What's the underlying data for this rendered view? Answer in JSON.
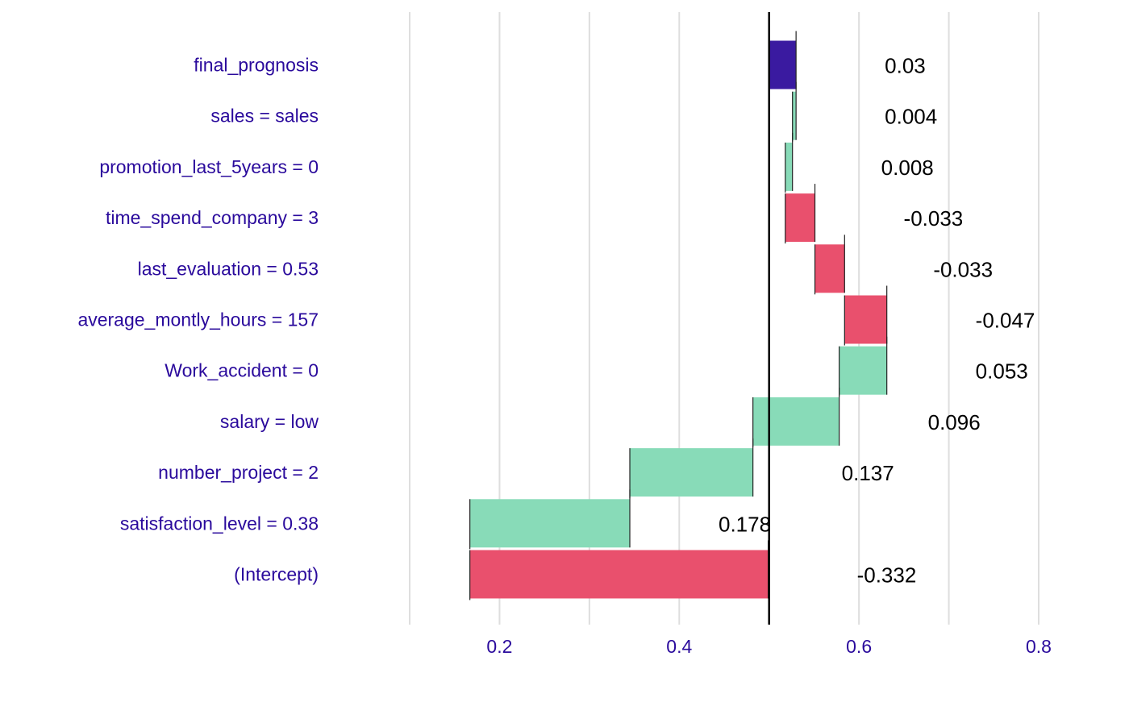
{
  "chart_data": {
    "type": "bar",
    "subtype": "waterfall-break-down",
    "title": "",
    "xlabel": "",
    "ylabel": "",
    "xlim": [
      0.1,
      0.8
    ],
    "x_ticks": [
      0.2,
      0.4,
      0.6,
      0.8
    ],
    "x_tick_labels": [
      "0.2",
      "0.4",
      "0.6",
      "0.8"
    ],
    "baseline": 0.5,
    "grid": true,
    "colors": {
      "positive": "#86dab7",
      "negative": "#e94d6a",
      "prediction": "#3a1aa0",
      "labels": "#2a0a9c",
      "baseline": "#000000"
    },
    "categories": [
      "final_prognosis",
      "sales = sales",
      "promotion_last_5years = 0",
      "time_spend_company = 3",
      "last_evaluation = 0.53",
      "average_montly_hours = 157",
      "Work_accident = 0",
      "salary = low",
      "number_project = 2",
      "satisfaction_level = 0.38",
      "(Intercept)"
    ],
    "bars": [
      {
        "label": "final_prognosis",
        "start": 0.5,
        "end": 0.53,
        "value": "0.03",
        "kind": "prediction"
      },
      {
        "label": "sales = sales",
        "start": 0.526,
        "end": 0.53,
        "value": "0.004",
        "kind": "positive"
      },
      {
        "label": "promotion_last_5years = 0",
        "start": 0.518,
        "end": 0.526,
        "value": "0.008",
        "kind": "positive"
      },
      {
        "label": "time_spend_company = 3",
        "start": 0.518,
        "end": 0.551,
        "value": "-0.033",
        "kind": "negative"
      },
      {
        "label": "last_evaluation = 0.53",
        "start": 0.551,
        "end": 0.584,
        "value": "-0.033",
        "kind": "negative"
      },
      {
        "label": "average_montly_hours = 157",
        "start": 0.584,
        "end": 0.631,
        "value": "-0.047",
        "kind": "negative"
      },
      {
        "label": "Work_accident = 0",
        "start": 0.578,
        "end": 0.631,
        "value": "0.053",
        "kind": "positive"
      },
      {
        "label": "salary = low",
        "start": 0.482,
        "end": 0.578,
        "value": "0.096",
        "kind": "positive"
      },
      {
        "label": "number_project = 2",
        "start": 0.345,
        "end": 0.482,
        "value": "0.137",
        "kind": "positive"
      },
      {
        "label": "satisfaction_level = 0.38",
        "start": 0.167,
        "end": 0.345,
        "value": "0.178",
        "kind": "positive"
      },
      {
        "label": "(Intercept)",
        "start": 0.167,
        "end": 0.499,
        "value": "-0.332",
        "kind": "negative"
      }
    ]
  }
}
